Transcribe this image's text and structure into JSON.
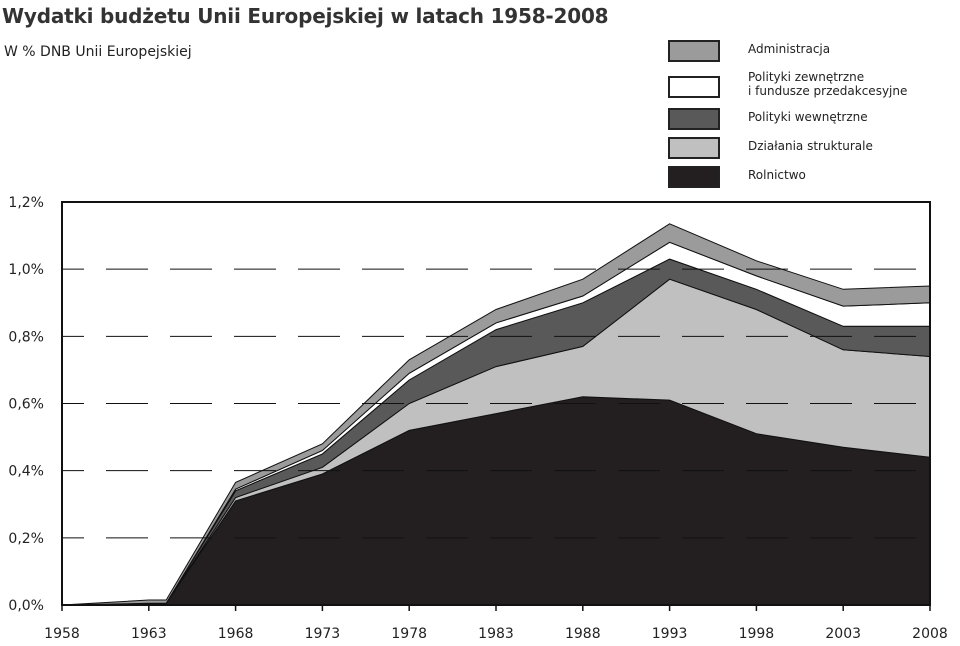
{
  "title": "Wydatki budżetu Unii Europejskiej  w latach 1958-2008",
  "subtitle": "W % DNB Unii Europejskiej",
  "legend": [
    {
      "label": "Administracja",
      "color": "#9b9b9b"
    },
    {
      "label": "Polityki zewnętrzne\ni fundusze przedakcesyjne",
      "color": "#ffffff"
    },
    {
      "label": "Polityki wewnętrzne",
      "color": "#595959"
    },
    {
      "label": "Działania strukturale",
      "color": "#c0c0c0"
    },
    {
      "label": "Rolnictwo",
      "color": "#231f20"
    }
  ],
  "chart_data": {
    "type": "area",
    "stacked": true,
    "x": [
      1958,
      1963,
      1964,
      1968,
      1973,
      1978,
      1983,
      1988,
      1993,
      1998,
      2003,
      2008
    ],
    "x_ticks": [
      1958,
      1963,
      1968,
      1973,
      1978,
      1983,
      1988,
      1993,
      1998,
      2003,
      2008
    ],
    "y_ticks": [
      "0,0%",
      "0,2%",
      "0,4%",
      "0,6%",
      "0,8%",
      "1,0%",
      "1,2%"
    ],
    "ylim": [
      0,
      1.2
    ],
    "grid": "dashed horizontal at 0.2, 0.4, 0.6, 0.8, 1.0",
    "legend_position": "top-right",
    "series": [
      {
        "name": "Rolnictwo",
        "color": "#231f20",
        "values": [
          0.0,
          0.005,
          0.005,
          0.31,
          0.39,
          0.52,
          0.57,
          0.62,
          0.61,
          0.51,
          0.47,
          0.44
        ]
      },
      {
        "name": "Działania strukturale",
        "color": "#c0c0c0",
        "values": [
          0.0,
          0.0,
          0.0,
          0.01,
          0.02,
          0.08,
          0.14,
          0.15,
          0.36,
          0.37,
          0.29,
          0.3
        ]
      },
      {
        "name": "Polityki wewnętrzne",
        "color": "#595959",
        "values": [
          0.0,
          0.0,
          0.0,
          0.02,
          0.04,
          0.07,
          0.11,
          0.13,
          0.06,
          0.06,
          0.07,
          0.09
        ]
      },
      {
        "name": "Polityki zewnętrzne\ni fundusze przedakcesyjne",
        "color": "#ffffff",
        "values": [
          0.0,
          0.0,
          0.0,
          0.005,
          0.01,
          0.02,
          0.02,
          0.02,
          0.05,
          0.04,
          0.06,
          0.07
        ]
      },
      {
        "name": "Administracja",
        "color": "#9b9b9b",
        "values": [
          0.0,
          0.01,
          0.01,
          0.02,
          0.02,
          0.04,
          0.04,
          0.05,
          0.055,
          0.045,
          0.05,
          0.05
        ]
      }
    ]
  }
}
